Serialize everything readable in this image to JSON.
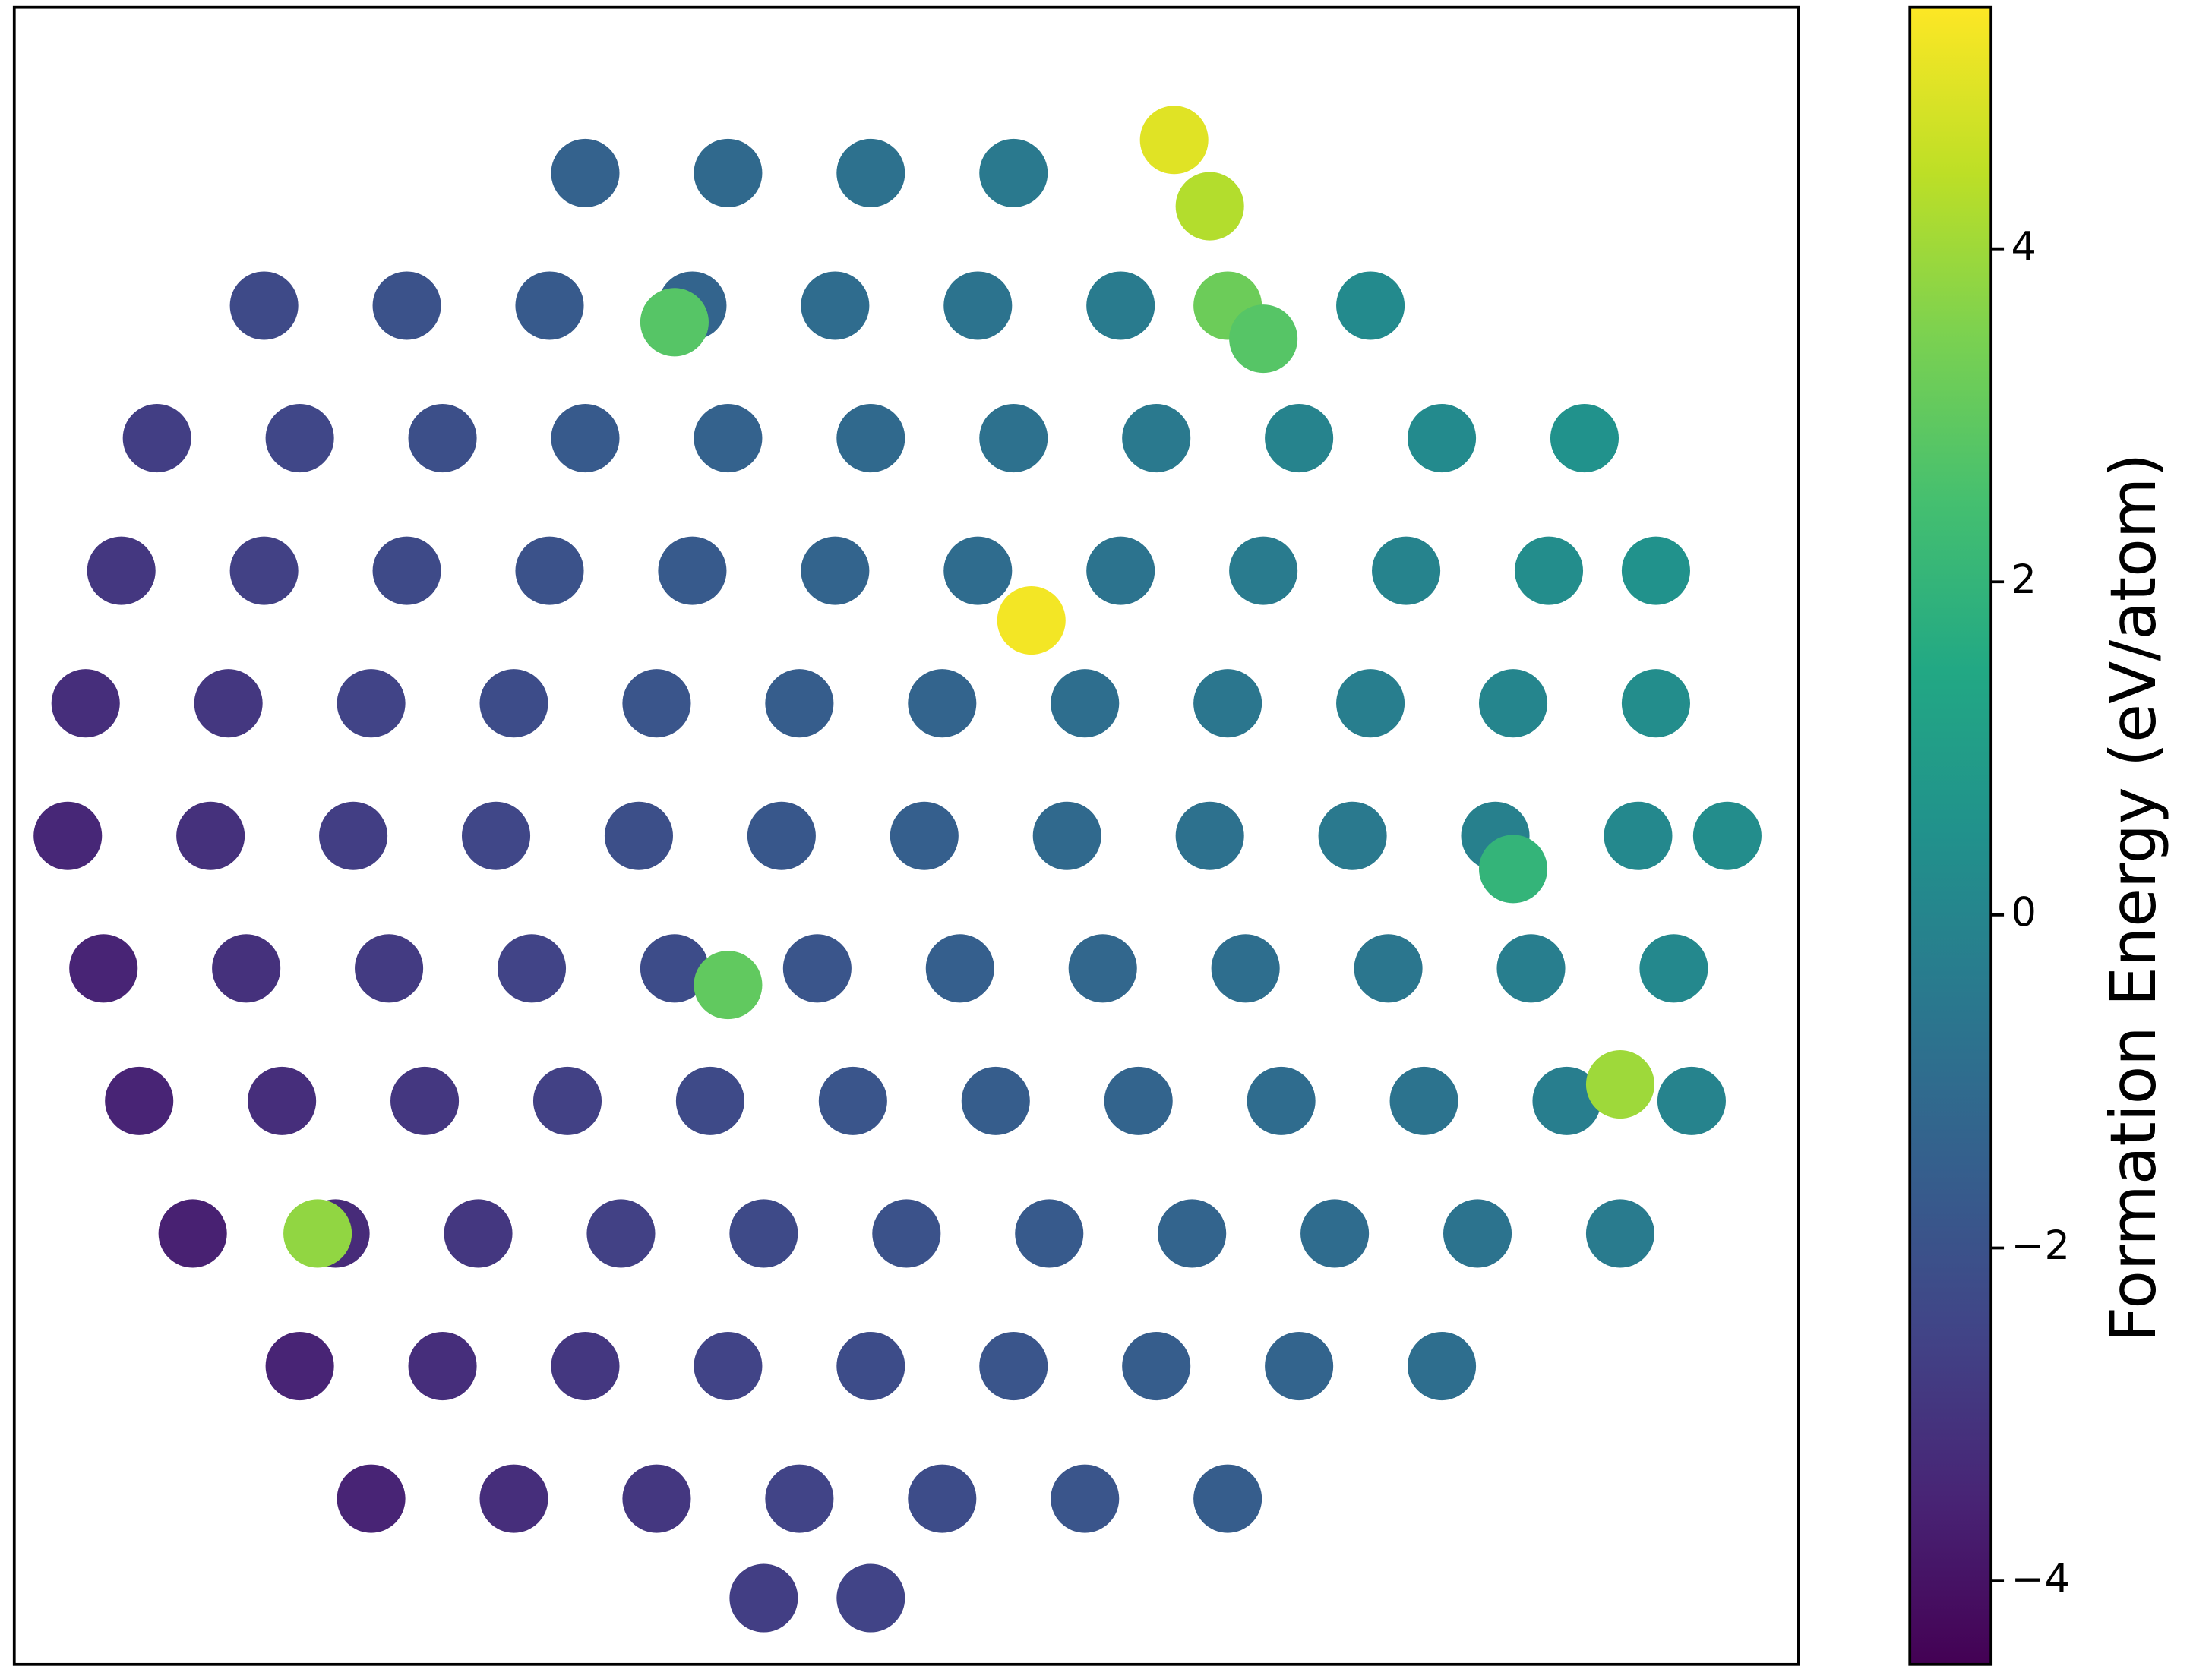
{
  "chart_data": {
    "type": "scatter",
    "colormap": "viridis",
    "xlim": [
      0,
      100
    ],
    "ylim": [
      0,
      100
    ],
    "x": [
      32,
      40,
      48,
      56,
      14,
      22,
      30,
      38,
      46,
      54,
      62,
      76,
      8,
      16,
      24,
      32,
      40,
      48,
      56,
      64,
      72,
      80,
      88,
      6,
      14,
      22,
      30,
      38,
      46,
      54,
      62,
      70,
      78,
      86,
      92,
      4,
      12,
      20,
      28,
      36,
      44,
      52,
      60,
      68,
      76,
      84,
      92,
      3,
      11,
      19,
      27,
      35,
      43,
      51,
      59,
      67,
      75,
      83,
      91,
      96,
      5,
      13,
      21,
      29,
      37,
      45,
      53,
      61,
      69,
      77,
      85,
      93,
      7,
      15,
      23,
      31,
      39,
      47,
      55,
      63,
      71,
      79,
      87,
      94,
      10,
      18,
      26,
      34,
      42,
      50,
      58,
      66,
      74,
      82,
      90,
      16,
      24,
      32,
      40,
      48,
      56,
      64,
      72,
      80,
      20,
      28,
      36,
      44,
      52,
      60,
      68,
      42,
      48,
      65,
      67,
      68,
      70,
      57,
      40,
      37,
      17,
      90,
      84
    ],
    "values": [
      90,
      90,
      90,
      90,
      82,
      82,
      82,
      82,
      82,
      82,
      82,
      82,
      74,
      74,
      74,
      74,
      74,
      74,
      74,
      74,
      74,
      74,
      74,
      66,
      66,
      66,
      66,
      66,
      66,
      66,
      66,
      66,
      66,
      66,
      66,
      58,
      58,
      58,
      58,
      58,
      58,
      58,
      58,
      58,
      58,
      58,
      58,
      50,
      50,
      50,
      50,
      50,
      50,
      50,
      50,
      50,
      50,
      50,
      50,
      50,
      42,
      42,
      42,
      42,
      42,
      42,
      42,
      42,
      42,
      42,
      42,
      42,
      34,
      34,
      34,
      34,
      34,
      34,
      34,
      34,
      34,
      34,
      34,
      34,
      26,
      26,
      26,
      26,
      26,
      26,
      26,
      26,
      26,
      26,
      26,
      18,
      18,
      18,
      18,
      18,
      18,
      18,
      18,
      18,
      10,
      10,
      10,
      10,
      10,
      10,
      10,
      4,
      4,
      92,
      88,
      82,
      80,
      63,
      41,
      81,
      26,
      35,
      48
    ],
    "color_values": [
      -1.4,
      -1.1,
      -0.8,
      -0.5,
      -2.3,
      -2.0,
      -1.7,
      -1.3,
      -1.0,
      -0.7,
      -0.4,
      0.2,
      -2.7,
      -2.4,
      -2.1,
      -1.7,
      -1.4,
      -1.1,
      -0.8,
      -0.5,
      -0.1,
      0.2,
      0.5,
      -2.9,
      -2.6,
      -2.3,
      -2.0,
      -1.7,
      -1.3,
      -1.0,
      -0.7,
      -0.4,
      -0.1,
      0.3,
      0.5,
      -3.2,
      -2.9,
      -2.5,
      -2.2,
      -1.9,
      -1.6,
      -1.3,
      -0.9,
      -0.6,
      -0.3,
      0.0,
      0.3,
      -3.4,
      -3.1,
      -2.7,
      -2.4,
      -2.1,
      -1.8,
      -1.5,
      -1.1,
      -0.8,
      -0.5,
      -0.2,
      0.1,
      0.3,
      -3.5,
      -3.1,
      -2.8,
      -2.5,
      -2.2,
      -1.9,
      -1.5,
      -1.2,
      -0.9,
      -0.6,
      -0.3,
      0.1,
      -3.5,
      -3.2,
      -2.9,
      -2.6,
      -2.3,
      -1.9,
      -1.6,
      -1.3,
      -1.0,
      -0.7,
      -0.3,
      -0.1,
      -3.6,
      -3.3,
      -2.9,
      -2.6,
      -2.3,
      -2.0,
      -1.7,
      -1.3,
      -1.0,
      -0.7,
      -0.4,
      -3.5,
      -3.2,
      -2.9,
      -2.5,
      -2.2,
      -1.9,
      -1.6,
      -1.3,
      -0.9,
      -3.5,
      -3.2,
      -2.9,
      -2.5,
      -2.2,
      -1.9,
      -1.6,
      -2.7,
      -2.5,
      5.0,
      4.3,
      3.2,
      2.8,
      5.3,
      3.0,
      2.8,
      3.8,
      4.0,
      2.0
    ],
    "colorbar_label": "Formation Energy (eV/atom)",
    "clim": [
      -4.5,
      5.45
    ],
    "colorbar_ticks": [
      {
        "value": -4,
        "label": "−4"
      },
      {
        "value": -2,
        "label": "−2"
      },
      0,
      2,
      4
    ]
  }
}
